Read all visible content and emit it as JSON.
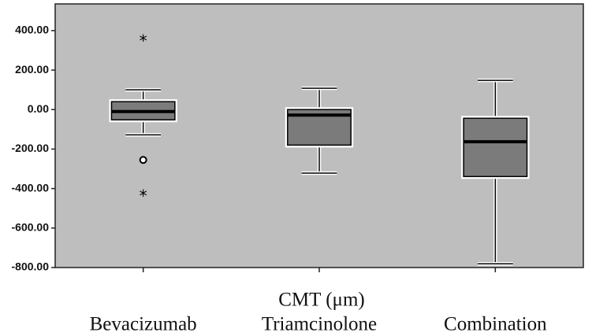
{
  "chart_data": {
    "type": "box",
    "x_label": "CMT (μm)",
    "categories": [
      "Bevacizumab",
      "Triamcinolone",
      "Combination"
    ],
    "boxes": [
      {
        "whisker_low": -128,
        "q1": -52,
        "median": -10,
        "q3": 40,
        "whisker_high": 100,
        "outliers": [
          {
            "value": 358,
            "marker": "star"
          },
          {
            "value": -255,
            "marker": "circle"
          },
          {
            "value": -427,
            "marker": "star"
          }
        ]
      },
      {
        "whisker_low": -322,
        "q1": -180,
        "median": -28,
        "q3": 0,
        "whisker_high": 108,
        "outliers": []
      },
      {
        "whisker_low": -781,
        "q1": -339,
        "median": -163,
        "q3": -44,
        "whisker_high": 148,
        "outliers": []
      }
    ],
    "ylim": [
      -800,
      535
    ],
    "yticks": [
      {
        "value": 400,
        "label": "400.00"
      },
      {
        "value": 200,
        "label": "200.00"
      },
      {
        "value": 0,
        "label": "0.00"
      },
      {
        "value": -200,
        "label": "-200.00"
      },
      {
        "value": -400,
        "label": "-400.00"
      },
      {
        "value": -600,
        "label": "-600.00"
      },
      {
        "value": -800,
        "label": "-800.00"
      }
    ],
    "box_color": "#7b7b7b",
    "plot_background": "#bebebe"
  }
}
